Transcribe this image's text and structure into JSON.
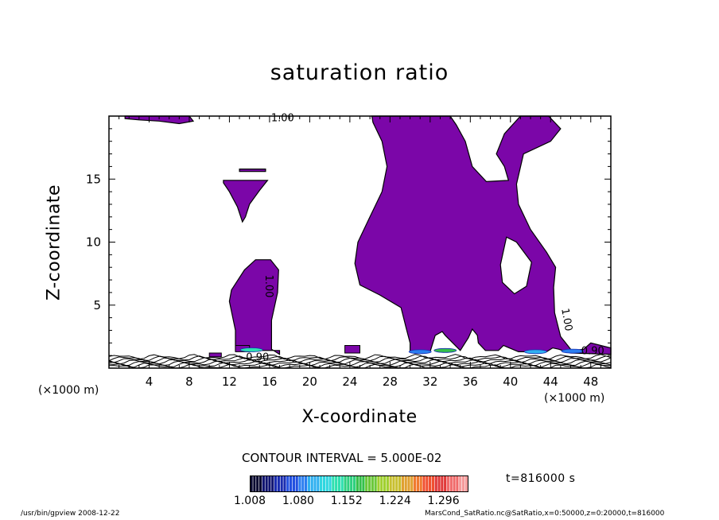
{
  "chart_data": {
    "type": "contour",
    "title": "saturation ratio",
    "xlabel": "X-coordinate",
    "ylabel": "Z-coordinate",
    "x_unit": "(×1000 m)",
    "xlim": [
      0,
      50
    ],
    "ylim": [
      0,
      20
    ],
    "x_ticks": [
      4,
      8,
      12,
      16,
      20,
      24,
      28,
      32,
      36,
      40,
      44,
      48
    ],
    "y_ticks": [
      5,
      10,
      15
    ],
    "contour_level_labels": [
      "1.00",
      "1.00",
      "1.00",
      "0.90",
      "0.90"
    ],
    "fill_color": "#7b06a8",
    "contour_note": "CONTOUR INTERVAL = 5.000E-02",
    "colorbar_labels": [
      "1.008",
      "1.080",
      "1.152",
      "1.224",
      "1.296"
    ],
    "colorbar_range": [
      1.008,
      1.332
    ],
    "time_label": "t=816000 s",
    "footer_left": "/usr/bin/gpview   2008-12-22",
    "footer_right": "MarsCond_SatRatio.nc@SatRatio,x=0:50000,z=0:20000,t=816000"
  }
}
